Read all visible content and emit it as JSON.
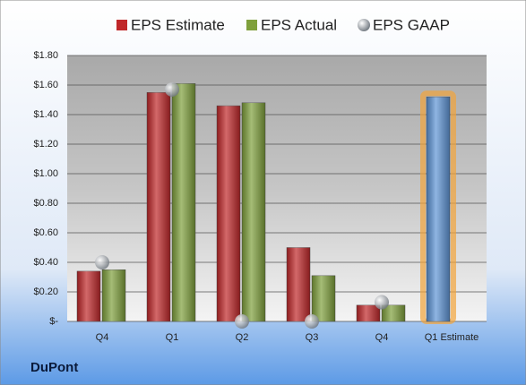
{
  "chart_data": {
    "type": "bar",
    "caption": "DuPont",
    "categories": [
      "Q4",
      "Q1",
      "Q2",
      "Q3",
      "Q4",
      "Q1 Estimate"
    ],
    "series": [
      {
        "name": "EPS Estimate",
        "color": "#c0282a",
        "values": [
          0.34,
          1.55,
          1.46,
          0.5,
          0.11,
          1.52
        ]
      },
      {
        "name": "EPS Actual",
        "color": "#7fa03c",
        "values": [
          0.35,
          1.61,
          1.48,
          0.31,
          0.11,
          null
        ]
      },
      {
        "name": "EPS GAAP",
        "color": "#9aa0a8",
        "marker": "circle",
        "values": [
          0.4,
          1.57,
          0.0,
          0.0,
          0.13,
          null
        ]
      }
    ],
    "highlight": {
      "series": 0,
      "index": 5,
      "color": "#5f95d6",
      "glow": "#f2a43a"
    },
    "ylim": [
      0,
      1.8
    ],
    "yticks": [
      {
        "value": 0,
        "label": "$-"
      },
      {
        "value": 0.2,
        "label": "$0.20"
      },
      {
        "value": 0.4,
        "label": "$0.40"
      },
      {
        "value": 0.6,
        "label": "$0.60"
      },
      {
        "value": 0.8,
        "label": "$0.80"
      },
      {
        "value": 1.0,
        "label": "$1.00"
      },
      {
        "value": 1.2,
        "label": "$1.20"
      },
      {
        "value": 1.4,
        "label": "$1.40"
      },
      {
        "value": 1.6,
        "label": "$1.60"
      },
      {
        "value": 1.8,
        "label": "$1.80"
      }
    ],
    "grid": true
  }
}
